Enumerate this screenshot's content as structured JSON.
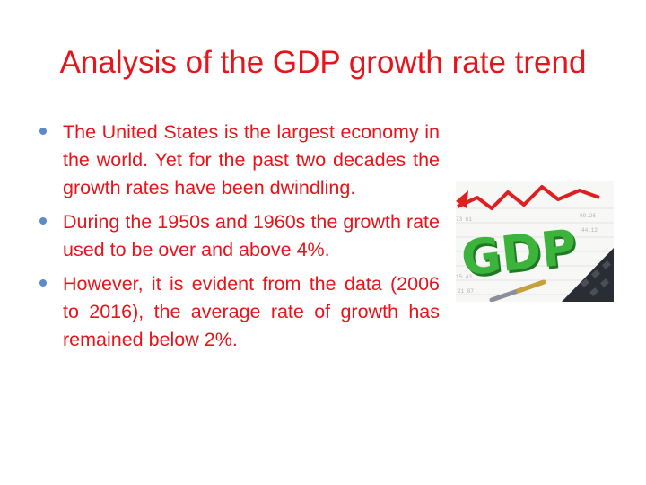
{
  "slide": {
    "title": "Analysis of the GDP growth rate trend",
    "bullets": [
      "The United States is the largest economy in the world. Yet for the past two decades the growth rates have been dwindling.",
      "During the 1950s and 1960s the growth rate used to be over and above 4%.",
      "However, it is evident from the data (2006 to 2016), the average rate of growth has remained below 2%."
    ],
    "image": {
      "icon": "gdp-growth-illustration",
      "text": "GDP"
    }
  },
  "colors": {
    "title": "#e8141b",
    "body_text": "#e8141b",
    "bullet": "#5b8cc9",
    "gdp_letters": "#3cb43c",
    "arrow": "#e02020"
  }
}
